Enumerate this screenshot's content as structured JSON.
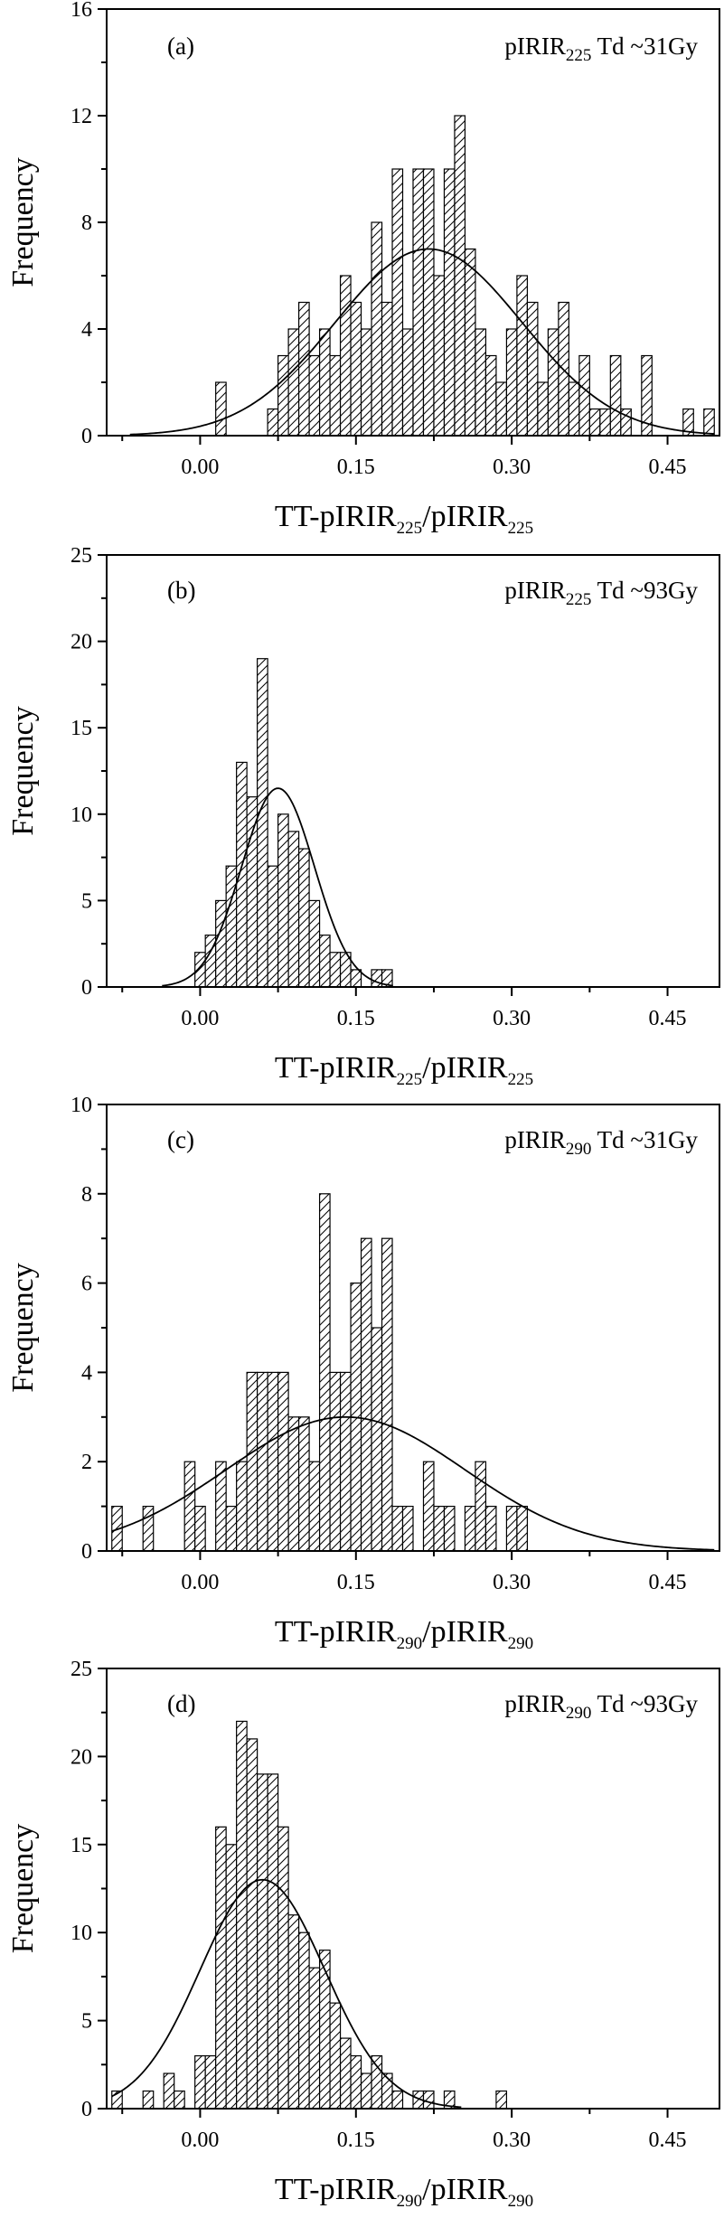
{
  "chart_data": [
    {
      "type": "bar",
      "panel_label": "(a)",
      "annotation": {
        "main": "pIRIR",
        "sub": "225",
        "rest": " Td ~31Gy"
      },
      "xlabel": {
        "main": "TT-pIRIR",
        "sub1": "225",
        "mid": "/pIRIR",
        "sub2": "225"
      },
      "ylabel": "Frequency",
      "xlim": [
        -0.09,
        0.5
      ],
      "ylim": [
        0,
        16
      ],
      "xticks": [
        "0.00",
        "0.15",
        "0.30",
        "0.45"
      ],
      "xtick_values": [
        0.0,
        0.15,
        0.3,
        0.45
      ],
      "yticks": [
        "0",
        "4",
        "8",
        "12",
        "16"
      ],
      "ytick_values": [
        0,
        4,
        8,
        12,
        16
      ],
      "bin_width": 0.01,
      "bins": [
        {
          "x": 0.01,
          "y": 0
        },
        {
          "x": 0.02,
          "y": 2
        },
        {
          "x": 0.03,
          "y": 0
        },
        {
          "x": 0.04,
          "y": 0
        },
        {
          "x": 0.05,
          "y": 0
        },
        {
          "x": 0.06,
          "y": 0
        },
        {
          "x": 0.07,
          "y": 1
        },
        {
          "x": 0.08,
          "y": 3
        },
        {
          "x": 0.09,
          "y": 4
        },
        {
          "x": 0.1,
          "y": 5
        },
        {
          "x": 0.11,
          "y": 3
        },
        {
          "x": 0.12,
          "y": 4
        },
        {
          "x": 0.13,
          "y": 3
        },
        {
          "x": 0.14,
          "y": 6
        },
        {
          "x": 0.15,
          "y": 5
        },
        {
          "x": 0.16,
          "y": 4
        },
        {
          "x": 0.17,
          "y": 8
        },
        {
          "x": 0.18,
          "y": 5
        },
        {
          "x": 0.19,
          "y": 10
        },
        {
          "x": 0.2,
          "y": 4
        },
        {
          "x": 0.21,
          "y": 10
        },
        {
          "x": 0.22,
          "y": 10
        },
        {
          "x": 0.23,
          "y": 6
        },
        {
          "x": 0.24,
          "y": 10
        },
        {
          "x": 0.25,
          "y": 12
        },
        {
          "x": 0.26,
          "y": 7
        },
        {
          "x": 0.27,
          "y": 4
        },
        {
          "x": 0.28,
          "y": 3
        },
        {
          "x": 0.29,
          "y": 2
        },
        {
          "x": 0.3,
          "y": 4
        },
        {
          "x": 0.31,
          "y": 6
        },
        {
          "x": 0.32,
          "y": 5
        },
        {
          "x": 0.33,
          "y": 2
        },
        {
          "x": 0.34,
          "y": 4
        },
        {
          "x": 0.35,
          "y": 5
        },
        {
          "x": 0.36,
          "y": 2
        },
        {
          "x": 0.37,
          "y": 3
        },
        {
          "x": 0.38,
          "y": 1
        },
        {
          "x": 0.39,
          "y": 1
        },
        {
          "x": 0.4,
          "y": 3
        },
        {
          "x": 0.41,
          "y": 1
        },
        {
          "x": 0.42,
          "y": 0
        },
        {
          "x": 0.43,
          "y": 3
        },
        {
          "x": 0.44,
          "y": 0
        },
        {
          "x": 0.45,
          "y": 0
        },
        {
          "x": 0.46,
          "y": 0
        },
        {
          "x": 0.47,
          "y": 1
        },
        {
          "x": 0.48,
          "y": 0
        },
        {
          "x": 0.49,
          "y": 1
        }
      ],
      "normal_fit": {
        "mean": 0.22,
        "sd": 0.09,
        "peak": 7
      }
    },
    {
      "type": "bar",
      "panel_label": "(b)",
      "annotation": {
        "main": "pIRIR",
        "sub": "225",
        "rest": " Td ~93Gy"
      },
      "xlabel": {
        "main": "TT-pIRIR",
        "sub1": "225",
        "mid": "/pIRIR",
        "sub2": "225"
      },
      "ylabel": "Frequency",
      "xlim": [
        -0.09,
        0.5
      ],
      "ylim": [
        0,
        25
      ],
      "xticks": [
        "0.00",
        "0.15",
        "0.30",
        "0.45"
      ],
      "xtick_values": [
        0.0,
        0.15,
        0.3,
        0.45
      ],
      "yticks": [
        "0",
        "5",
        "10",
        "15",
        "20",
        "25"
      ],
      "ytick_values": [
        0,
        5,
        10,
        15,
        20,
        25
      ],
      "bin_width": 0.01,
      "bins": [
        {
          "x": 0.0,
          "y": 2
        },
        {
          "x": 0.01,
          "y": 3
        },
        {
          "x": 0.02,
          "y": 5
        },
        {
          "x": 0.03,
          "y": 7
        },
        {
          "x": 0.04,
          "y": 13
        },
        {
          "x": 0.05,
          "y": 11
        },
        {
          "x": 0.06,
          "y": 19
        },
        {
          "x": 0.07,
          "y": 7
        },
        {
          "x": 0.08,
          "y": 10
        },
        {
          "x": 0.09,
          "y": 9
        },
        {
          "x": 0.1,
          "y": 8
        },
        {
          "x": 0.11,
          "y": 5
        },
        {
          "x": 0.12,
          "y": 3
        },
        {
          "x": 0.13,
          "y": 2
        },
        {
          "x": 0.14,
          "y": 2
        },
        {
          "x": 0.15,
          "y": 1
        },
        {
          "x": 0.16,
          "y": 0
        },
        {
          "x": 0.17,
          "y": 1
        },
        {
          "x": 0.18,
          "y": 1
        }
      ],
      "normal_fit": {
        "mean": 0.075,
        "sd": 0.035,
        "peak": 11.5
      }
    },
    {
      "type": "bar",
      "panel_label": "(c)",
      "annotation": {
        "main": "pIRIR",
        "sub": "290",
        "rest": " Td ~31Gy"
      },
      "xlabel": {
        "main": "TT-pIRIR",
        "sub1": "290",
        "mid": "/pIRIR",
        "sub2": "290"
      },
      "ylabel": "Frequency",
      "xlim": [
        -0.09,
        0.5
      ],
      "ylim": [
        0,
        10
      ],
      "xticks": [
        "0.00",
        "0.15",
        "0.30",
        "0.45"
      ],
      "xtick_values": [
        0.0,
        0.15,
        0.3,
        0.45
      ],
      "yticks": [
        "0",
        "2",
        "4",
        "6",
        "8",
        "10"
      ],
      "ytick_values": [
        0,
        2,
        4,
        6,
        8,
        10
      ],
      "bin_width": 0.01,
      "bins": [
        {
          "x": -0.08,
          "y": 1
        },
        {
          "x": -0.07,
          "y": 0
        },
        {
          "x": -0.06,
          "y": 0
        },
        {
          "x": -0.05,
          "y": 1
        },
        {
          "x": -0.04,
          "y": 0
        },
        {
          "x": -0.03,
          "y": 0
        },
        {
          "x": -0.02,
          "y": 0
        },
        {
          "x": -0.01,
          "y": 2
        },
        {
          "x": 0.0,
          "y": 1
        },
        {
          "x": 0.01,
          "y": 0
        },
        {
          "x": 0.02,
          "y": 2
        },
        {
          "x": 0.03,
          "y": 1
        },
        {
          "x": 0.04,
          "y": 2
        },
        {
          "x": 0.05,
          "y": 4
        },
        {
          "x": 0.06,
          "y": 4
        },
        {
          "x": 0.07,
          "y": 4
        },
        {
          "x": 0.08,
          "y": 4
        },
        {
          "x": 0.09,
          "y": 3
        },
        {
          "x": 0.1,
          "y": 3
        },
        {
          "x": 0.11,
          "y": 2
        },
        {
          "x": 0.12,
          "y": 8
        },
        {
          "x": 0.13,
          "y": 4
        },
        {
          "x": 0.14,
          "y": 4
        },
        {
          "x": 0.15,
          "y": 6
        },
        {
          "x": 0.16,
          "y": 7
        },
        {
          "x": 0.17,
          "y": 5
        },
        {
          "x": 0.18,
          "y": 7
        },
        {
          "x": 0.19,
          "y": 1
        },
        {
          "x": 0.2,
          "y": 1
        },
        {
          "x": 0.21,
          "y": 0
        },
        {
          "x": 0.22,
          "y": 2
        },
        {
          "x": 0.23,
          "y": 1
        },
        {
          "x": 0.24,
          "y": 1
        },
        {
          "x": 0.25,
          "y": 0
        },
        {
          "x": 0.26,
          "y": 1
        },
        {
          "x": 0.27,
          "y": 2
        },
        {
          "x": 0.28,
          "y": 1
        },
        {
          "x": 0.29,
          "y": 0
        },
        {
          "x": 0.3,
          "y": 1
        },
        {
          "x": 0.31,
          "y": 1
        }
      ],
      "normal_fit": {
        "mean": 0.14,
        "sd": 0.115,
        "peak": 3
      }
    },
    {
      "type": "bar",
      "panel_label": "(d)",
      "annotation": {
        "main": "pIRIR",
        "sub": "290",
        "rest": " Td ~93Gy"
      },
      "xlabel": {
        "main": "TT-pIRIR",
        "sub1": "290",
        "mid": "/pIRIR",
        "sub2": "290"
      },
      "ylabel": "Frequency",
      "xlim": [
        -0.09,
        0.5
      ],
      "ylim": [
        0,
        25
      ],
      "xticks": [
        "0.00",
        "0.15",
        "0.30",
        "0.45"
      ],
      "xtick_values": [
        0.0,
        0.15,
        0.3,
        0.45
      ],
      "yticks": [
        "0",
        "5",
        "10",
        "15",
        "20",
        "25"
      ],
      "ytick_values": [
        0,
        5,
        10,
        15,
        20,
        25
      ],
      "bin_width": 0.01,
      "bins": [
        {
          "x": -0.08,
          "y": 1
        },
        {
          "x": -0.07,
          "y": 0
        },
        {
          "x": -0.06,
          "y": 0
        },
        {
          "x": -0.05,
          "y": 1
        },
        {
          "x": -0.04,
          "y": 0
        },
        {
          "x": -0.03,
          "y": 2
        },
        {
          "x": -0.02,
          "y": 1
        },
        {
          "x": -0.01,
          "y": 0
        },
        {
          "x": 0.0,
          "y": 3
        },
        {
          "x": 0.01,
          "y": 3
        },
        {
          "x": 0.02,
          "y": 16
        },
        {
          "x": 0.03,
          "y": 15
        },
        {
          "x": 0.04,
          "y": 22
        },
        {
          "x": 0.05,
          "y": 21
        },
        {
          "x": 0.06,
          "y": 19
        },
        {
          "x": 0.07,
          "y": 19
        },
        {
          "x": 0.08,
          "y": 16
        },
        {
          "x": 0.09,
          "y": 11
        },
        {
          "x": 0.1,
          "y": 10
        },
        {
          "x": 0.11,
          "y": 8
        },
        {
          "x": 0.12,
          "y": 9
        },
        {
          "x": 0.13,
          "y": 6
        },
        {
          "x": 0.14,
          "y": 4
        },
        {
          "x": 0.15,
          "y": 3
        },
        {
          "x": 0.16,
          "y": 2
        },
        {
          "x": 0.17,
          "y": 3
        },
        {
          "x": 0.18,
          "y": 2
        },
        {
          "x": 0.19,
          "y": 1
        },
        {
          "x": 0.2,
          "y": 0
        },
        {
          "x": 0.21,
          "y": 1
        },
        {
          "x": 0.22,
          "y": 1
        },
        {
          "x": 0.23,
          "y": 0
        },
        {
          "x": 0.24,
          "y": 1
        },
        {
          "x": 0.25,
          "y": 0
        },
        {
          "x": 0.26,
          "y": 0
        },
        {
          "x": 0.27,
          "y": 0
        },
        {
          "x": 0.28,
          "y": 0
        },
        {
          "x": 0.29,
          "y": 1
        }
      ],
      "normal_fit": {
        "mean": 0.06,
        "sd": 0.06,
        "peak": 13
      }
    }
  ]
}
